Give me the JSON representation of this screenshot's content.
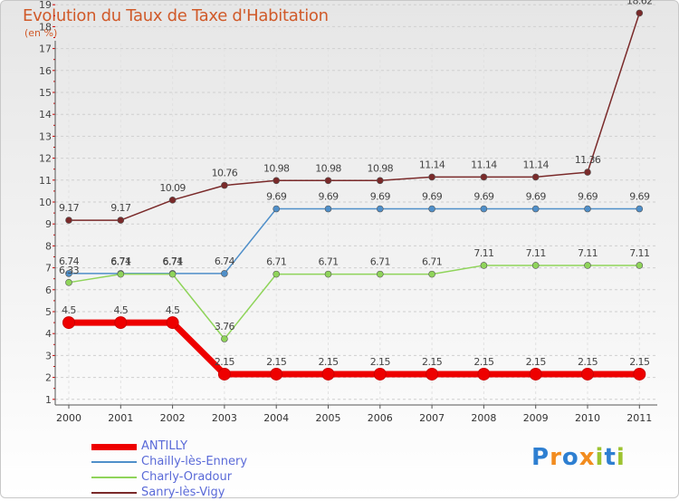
{
  "header": {
    "title": "Evolution du Taux de Taxe d'Habitation",
    "subtitle": "(en %)"
  },
  "logo": {
    "text": "Proxiti",
    "colors": [
      "#2e7fd1",
      "#f28c1f",
      "#2e7fd1",
      "#f28c1f",
      "#9dc32f",
      "#2e7fd1",
      "#9dc32f"
    ]
  },
  "chart_data": {
    "type": "line",
    "title": "Evolution du Taux de Taxe d'Habitation",
    "ylabel": "(en %)",
    "xlabel": "",
    "x": [
      "2000",
      "2001",
      "2002",
      "2003",
      "2004",
      "2005",
      "2006",
      "2007",
      "2008",
      "2009",
      "2010",
      "2011"
    ],
    "ylim": [
      0,
      19.5
    ],
    "y_ticks": [
      1,
      2,
      3,
      4,
      5,
      6,
      7,
      8,
      9,
      10,
      11,
      12,
      13,
      14,
      15,
      16,
      17,
      18,
      19
    ],
    "grid": "horizontal dashed",
    "legend_position": "bottom-left",
    "series": [
      {
        "name": "ANTILLY",
        "color": "#ee0000",
        "width": "thick",
        "values": [
          4.5,
          4.5,
          4.5,
          2.15,
          2.15,
          2.15,
          2.15,
          2.15,
          2.15,
          2.15,
          2.15,
          2.15
        ],
        "labels": [
          "4.5",
          "4.5",
          "4.5",
          "2.15",
          "2.15",
          "2.15",
          "2.15",
          "2.15",
          "2.15",
          "2.15",
          "2.15",
          "2.15"
        ]
      },
      {
        "name": "Chailly-lès-Ennery",
        "color": "#4f8fc9",
        "width": "thin",
        "values": [
          6.74,
          6.74,
          6.74,
          6.74,
          9.69,
          9.69,
          9.69,
          9.69,
          9.69,
          9.69,
          9.69,
          9.69
        ],
        "labels": [
          "6.74",
          "6.74",
          "6.74",
          "6.74",
          "9.69",
          "9.69",
          "9.69",
          "9.69",
          "9.69",
          "9.69",
          "9.69",
          "9.69"
        ]
      },
      {
        "name": "Charly-Oradour",
        "color": "#8fd45a",
        "width": "thin",
        "values": [
          6.33,
          6.71,
          6.71,
          3.76,
          6.71,
          6.71,
          6.71,
          6.71,
          7.11,
          7.11,
          7.11,
          7.11
        ],
        "labels": [
          "6.33",
          "6.71",
          "6.71",
          "3.76",
          "6.71",
          "6.71",
          "6.71",
          "6.71",
          "7.11",
          "7.11",
          "7.11",
          "7.11"
        ]
      },
      {
        "name": "Sanry-lès-Vigy",
        "color": "#7a2a2a",
        "width": "thin",
        "values": [
          9.17,
          9.17,
          10.09,
          10.76,
          10.98,
          10.98,
          10.98,
          11.14,
          11.14,
          11.14,
          11.36,
          18.62
        ],
        "labels": [
          "9.17",
          "9.17",
          "10.09",
          "10.76",
          "10.98",
          "10.98",
          "10.98",
          "11.14",
          "11.14",
          "11.14",
          "11.36",
          "18.62"
        ]
      }
    ]
  }
}
